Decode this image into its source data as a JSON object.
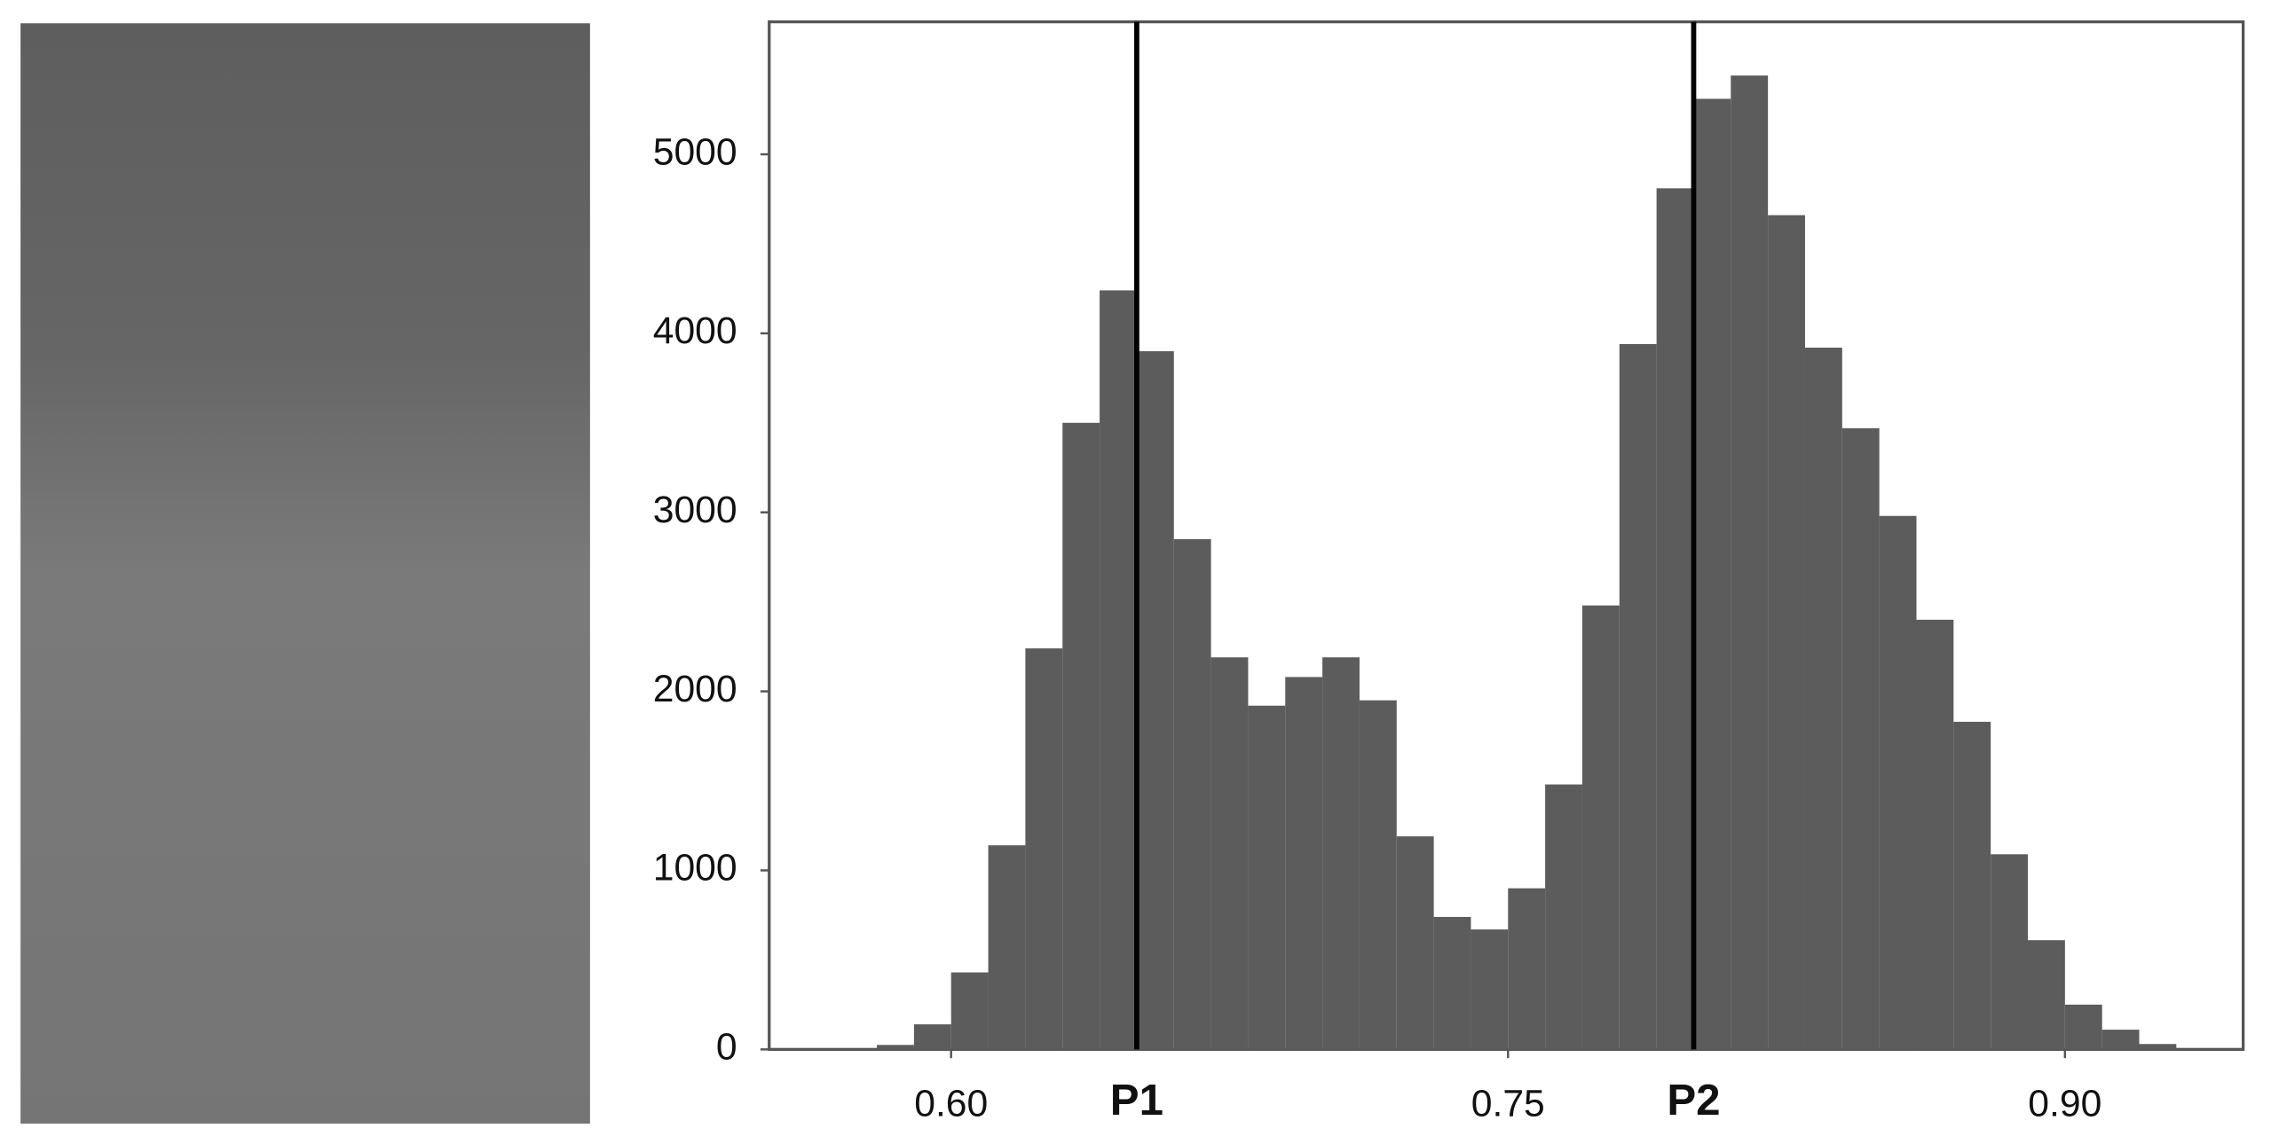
{
  "chart_data": {
    "type": "histogram",
    "bins": [
      0.58,
      0.59,
      0.6,
      0.61,
      0.62,
      0.63,
      0.64,
      0.65,
      0.66,
      0.67,
      0.68,
      0.69,
      0.7,
      0.71,
      0.72,
      0.73,
      0.74,
      0.75,
      0.76,
      0.77,
      0.78,
      0.79,
      0.8,
      0.81,
      0.82,
      0.83,
      0.84,
      0.85,
      0.86,
      0.87,
      0.88,
      0.89,
      0.9,
      0.91,
      0.92,
      0.93
    ],
    "counts": [
      25,
      140,
      430,
      1140,
      2240,
      3500,
      4240,
      3900,
      2850,
      2190,
      1920,
      2080,
      2190,
      1950,
      1190,
      740,
      670,
      900,
      1480,
      2480,
      3940,
      4810,
      5310,
      5440,
      4660,
      3920,
      3470,
      2980,
      2400,
      1830,
      1090,
      610,
      250,
      110,
      30
    ],
    "color": "#5c5c5c",
    "xlim": [
      0.551,
      0.948
    ],
    "xticks": [
      {
        "value": 0.6,
        "label": "0.60"
      },
      {
        "value": 0.75,
        "label": "0.75"
      },
      {
        "value": 0.9,
        "label": "0.90"
      }
    ],
    "ylim": [
      0,
      5740
    ],
    "yticks": [
      0,
      1000,
      2000,
      3000,
      4000,
      5000
    ],
    "markers": [
      {
        "label": "P1",
        "x": 0.65
      },
      {
        "label": "P2",
        "x": 0.8
      }
    ]
  }
}
